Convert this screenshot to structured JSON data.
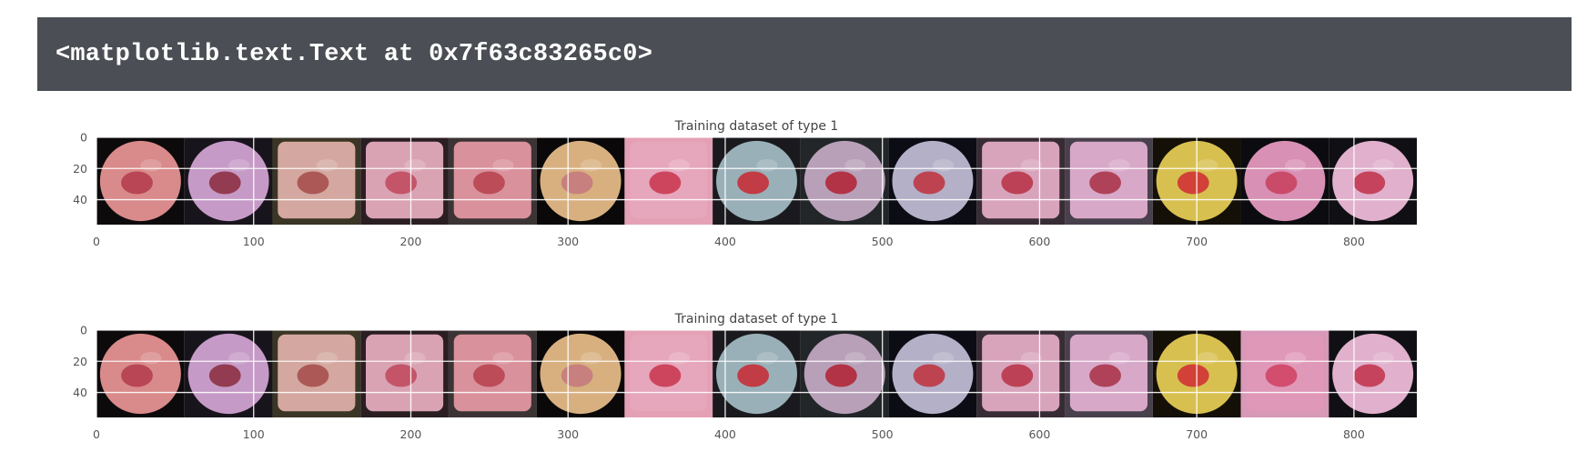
{
  "output": {
    "repr_text": "<matplotlib.text.Text at 0x7f63c83265c0>"
  },
  "chart_data": [
    {
      "type": "image",
      "title": "Training dataset of type 1",
      "xlim": [
        0,
        840
      ],
      "ylim": [
        56,
        0
      ],
      "xticks": [
        "0",
        "100",
        "200",
        "300",
        "400",
        "500",
        "600",
        "700",
        "800"
      ],
      "xtick_values": [
        0,
        100,
        200,
        300,
        400,
        500,
        600,
        700,
        800
      ],
      "yticks": [
        "0",
        "20",
        "40"
      ],
      "ytick_values": [
        0,
        20,
        40
      ],
      "grid": true,
      "tiles": [
        {
          "x0": 0,
          "x1": 56,
          "bg": "#0d0a0c",
          "tissue": "#d98a8a",
          "lesion": "#b23a4a",
          "shape": "round"
        },
        {
          "x0": 56,
          "x1": 112,
          "bg": "#18141c",
          "tissue": "#c69ac6",
          "lesion": "#8a2a3c",
          "shape": "round"
        },
        {
          "x0": 112,
          "x1": 168,
          "bg": "#3a3524",
          "tissue": "#d4a8a0",
          "lesion": "#a54a4a",
          "shape": "square"
        },
        {
          "x0": 168,
          "x1": 224,
          "bg": "#2a1e22",
          "tissue": "#d9a3b4",
          "lesion": "#c0485c",
          "shape": "square"
        },
        {
          "x0": 224,
          "x1": 280,
          "bg": "#3c3434",
          "tissue": "#d9919c",
          "lesion": "#b5404c",
          "shape": "square"
        },
        {
          "x0": 280,
          "x1": 336,
          "bg": "#0a0808",
          "tissue": "#d8b080",
          "lesion": "#c4787c",
          "shape": "round"
        },
        {
          "x0": 336,
          "x1": 392,
          "bg": "#e4a0b4",
          "tissue": "#e6a6bc",
          "lesion": "#c8344c",
          "shape": "square"
        },
        {
          "x0": 392,
          "x1": 448,
          "bg": "#1a1a1e",
          "tissue": "#9ab0b8",
          "lesion": "#c82830",
          "shape": "round"
        },
        {
          "x0": 448,
          "x1": 504,
          "bg": "#222628",
          "tissue": "#b8a0b8",
          "lesion": "#b02030",
          "shape": "round"
        },
        {
          "x0": 504,
          "x1": 560,
          "bg": "#0c0c14",
          "tissue": "#b4b0c8",
          "lesion": "#c0303c",
          "shape": "round"
        },
        {
          "x0": 560,
          "x1": 616,
          "bg": "#382c34",
          "tissue": "#d8a4bc",
          "lesion": "#b83044",
          "shape": "square"
        },
        {
          "x0": 616,
          "x1": 672,
          "bg": "#48404c",
          "tissue": "#d8a8c8",
          "lesion": "#a83044",
          "shape": "square"
        },
        {
          "x0": 672,
          "x1": 728,
          "bg": "#141008",
          "tissue": "#d8c050",
          "lesion": "#d02a34",
          "shape": "round"
        },
        {
          "x0": 728,
          "x1": 784,
          "bg": "#0c0c10",
          "tissue": "#d890b4",
          "lesion": "#c8405c",
          "shape": "round"
        },
        {
          "x0": 784,
          "x1": 840,
          "bg": "#101014",
          "tissue": "#e0b0cc",
          "lesion": "#c03048",
          "shape": "round"
        }
      ]
    },
    {
      "type": "image",
      "title": "Training dataset of type 1",
      "xlim": [
        0,
        840
      ],
      "ylim": [
        56,
        0
      ],
      "xticks": [
        "0",
        "100",
        "200",
        "300",
        "400",
        "500",
        "600",
        "700",
        "800"
      ],
      "xtick_values": [
        0,
        100,
        200,
        300,
        400,
        500,
        600,
        700,
        800
      ],
      "yticks": [
        "0",
        "20",
        "40"
      ],
      "ytick_values": [
        0,
        20,
        40
      ],
      "grid": true,
      "tiles": [
        {
          "x0": 0,
          "x1": 56,
          "bg": "#0d0a0c",
          "tissue": "#d98a8a",
          "lesion": "#b23a4a",
          "shape": "round"
        },
        {
          "x0": 56,
          "x1": 112,
          "bg": "#18141c",
          "tissue": "#c69ac6",
          "lesion": "#8a2a3c",
          "shape": "round"
        },
        {
          "x0": 112,
          "x1": 168,
          "bg": "#3a3524",
          "tissue": "#d4a8a0",
          "lesion": "#a54a4a",
          "shape": "square"
        },
        {
          "x0": 168,
          "x1": 224,
          "bg": "#2a1e22",
          "tissue": "#d9a3b4",
          "lesion": "#c0485c",
          "shape": "square"
        },
        {
          "x0": 224,
          "x1": 280,
          "bg": "#3c3434",
          "tissue": "#d9919c",
          "lesion": "#b5404c",
          "shape": "square"
        },
        {
          "x0": 280,
          "x1": 336,
          "bg": "#0a0808",
          "tissue": "#d8b080",
          "lesion": "#c4787c",
          "shape": "round"
        },
        {
          "x0": 336,
          "x1": 392,
          "bg": "#e4a0b4",
          "tissue": "#e6a6bc",
          "lesion": "#c8344c",
          "shape": "square"
        },
        {
          "x0": 392,
          "x1": 448,
          "bg": "#1a1a1e",
          "tissue": "#9ab0b8",
          "lesion": "#c82830",
          "shape": "round"
        },
        {
          "x0": 448,
          "x1": 504,
          "bg": "#222628",
          "tissue": "#b8a0b8",
          "lesion": "#b02030",
          "shape": "round"
        },
        {
          "x0": 504,
          "x1": 560,
          "bg": "#0c0c14",
          "tissue": "#b4b0c8",
          "lesion": "#c0303c",
          "shape": "round"
        },
        {
          "x0": 560,
          "x1": 616,
          "bg": "#382c34",
          "tissue": "#d8a4bc",
          "lesion": "#b83044",
          "shape": "square"
        },
        {
          "x0": 616,
          "x1": 672,
          "bg": "#48404c",
          "tissue": "#d8a8c8",
          "lesion": "#a83044",
          "shape": "square"
        },
        {
          "x0": 672,
          "x1": 728,
          "bg": "#141008",
          "tissue": "#d8c050",
          "lesion": "#d02a34",
          "shape": "round"
        },
        {
          "x0": 728,
          "x1": 784,
          "bg": "#d898b8",
          "tissue": "#e098b8",
          "lesion": "#d04060",
          "shape": "square"
        },
        {
          "x0": 784,
          "x1": 840,
          "bg": "#101014",
          "tissue": "#e0b0cc",
          "lesion": "#c03048",
          "shape": "round"
        }
      ]
    }
  ]
}
